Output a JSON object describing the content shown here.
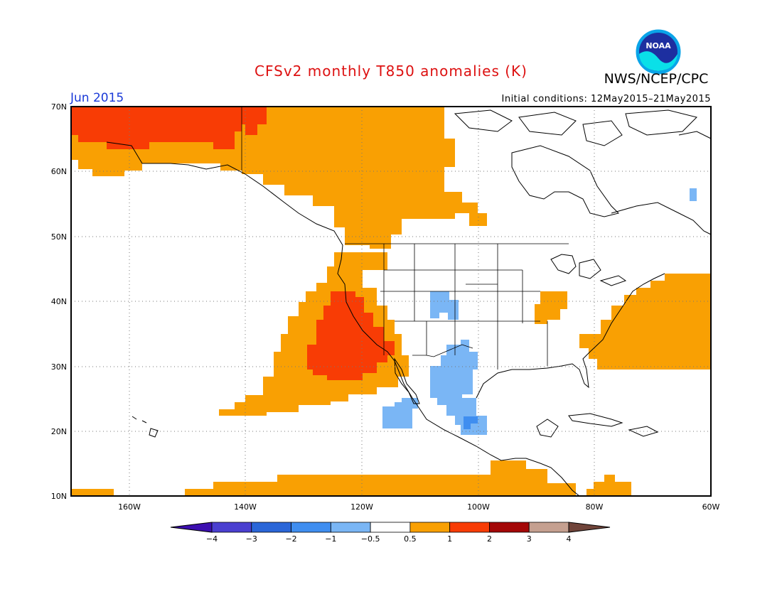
{
  "title": "CFSv2 monthly T850 anomalies (K)",
  "agency": "NWS/NCEP/CPC",
  "logo_text": "NOAA",
  "period": "Jun 2015",
  "initial_conditions": "Initial conditions: 12May2015–21May2015",
  "map": {
    "lon_range": [
      -170,
      -60
    ],
    "lat_range": [
      10,
      70
    ],
    "lat_labels": [
      "70N",
      "60N",
      "50N",
      "40N",
      "30N",
      "20N",
      "10N"
    ],
    "lon_labels": [
      "160W",
      "140W",
      "120W",
      "100W",
      "80W",
      "60W"
    ],
    "grid": "dotted"
  },
  "colorbar": {
    "ticks": [
      "−4",
      "−3",
      "−2",
      "−1",
      "−0.5",
      "0.5",
      "1",
      "2",
      "3",
      "4"
    ],
    "colors": [
      "#3c0fb0",
      "#4a3fd0",
      "#2a66d8",
      "#3f8ef0",
      "#7ab6f5",
      "#ffffff",
      "#f9a003",
      "#f83c05",
      "#a40707",
      "#c5a090",
      "#70443a"
    ]
  }
}
